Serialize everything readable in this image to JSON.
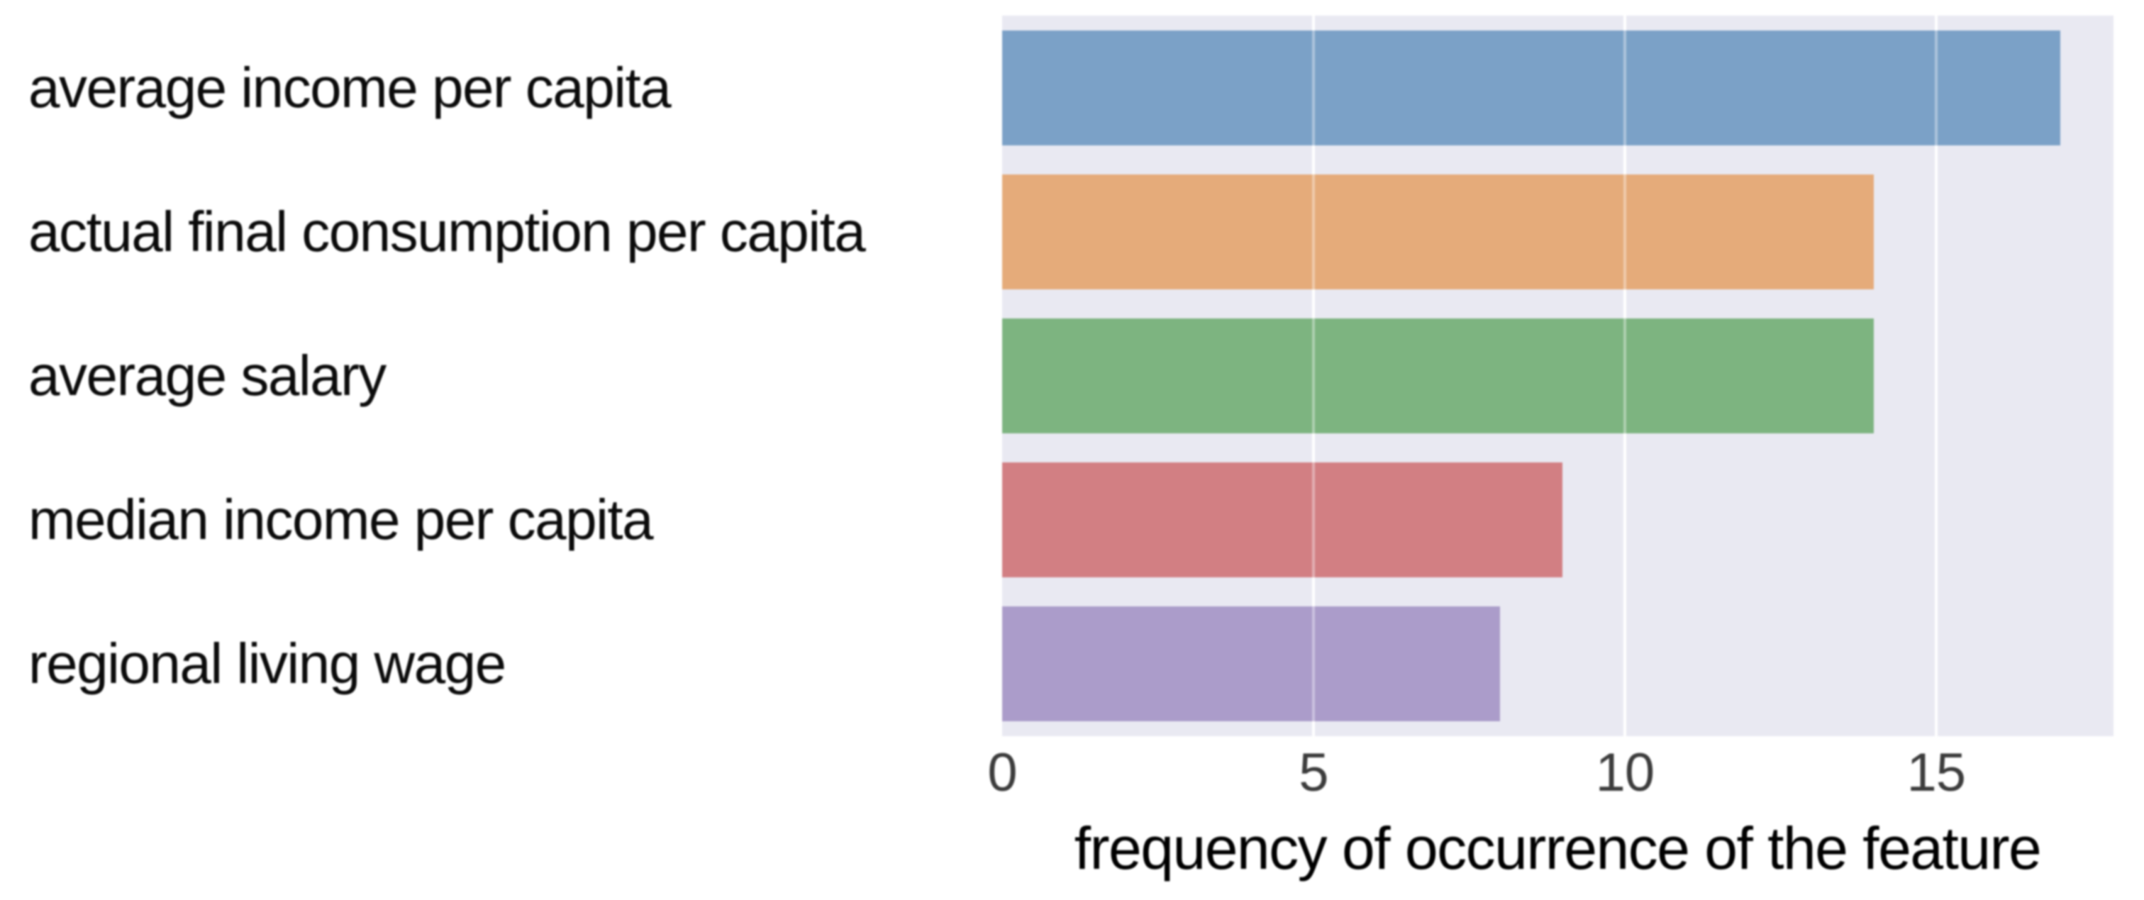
{
  "chart_data": {
    "type": "bar",
    "orientation": "horizontal",
    "title": "",
    "xlabel": "frequency of occurrence of the feature",
    "ylabel": "",
    "categories": [
      "average income per capita",
      "actual final consumption per capita",
      "average salary",
      "median income per capita",
      "regional living wage"
    ],
    "values": [
      17,
      14,
      14,
      9,
      8
    ],
    "bar_colors": [
      "#7ba1c7",
      "#e5ab7a",
      "#7db480",
      "#d27f83",
      "#ab9cca"
    ],
    "x_ticks": [
      0,
      5,
      10,
      15
    ],
    "xlim": [
      0,
      17.85
    ],
    "grid": true,
    "grid_color": "#ffffff",
    "plot_background": "#e9e9f2",
    "figure_background": "#ffffff",
    "legend": null
  }
}
